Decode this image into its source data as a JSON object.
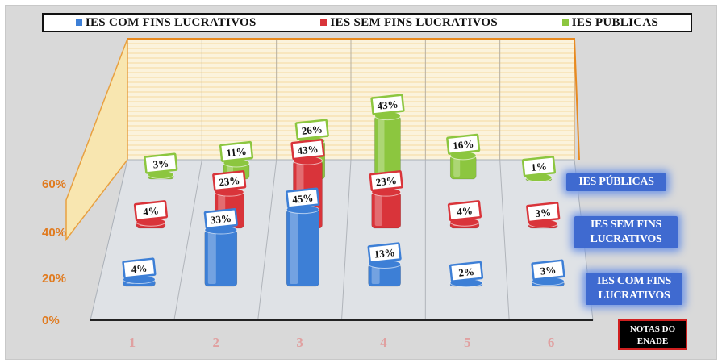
{
  "chart_data": {
    "type": "bar",
    "categories": [
      "1",
      "2",
      "3",
      "4",
      "5",
      "6"
    ],
    "series": [
      {
        "name": "IES COM FINS LUCRATIVOS",
        "values": [
          4,
          33,
          45,
          13,
          2,
          3
        ],
        "labels": [
          "4%",
          "33%",
          "45%",
          "13%",
          "2%",
          "3%"
        ],
        "color": "#3d7fd6"
      },
      {
        "name": "IES SEM FINS LUCRATIVOS",
        "values": [
          4,
          23,
          43,
          23,
          4,
          3
        ],
        "labels": [
          "4%",
          "23%",
          "43%",
          "23%",
          "4%",
          "3%"
        ],
        "color": "#d9343a"
      },
      {
        "name": "IES PÚBLICAS",
        "values": [
          3,
          11,
          26,
          43,
          16,
          1
        ],
        "labels": [
          "3%",
          "11%",
          "26%",
          "43%",
          "16%",
          "1%"
        ],
        "color": "#8cc63f"
      }
    ],
    "yticks": [
      "0%",
      "20%",
      "40%",
      "60%"
    ],
    "ylim": [
      0,
      60
    ],
    "depth_labels": [
      "IES PÚBLICAS",
      "IES SEM FINS LUCRATIVOS",
      "IES COM FINS LUCRATIVOS"
    ],
    "legend_labels": [
      "IES COM FINS LUCRATIVOS",
      "IES SEM FINS LUCRATIVOS",
      "IES PUBLICAS"
    ],
    "legend": "top",
    "xlabel": "NOTAS DO ENADE"
  }
}
